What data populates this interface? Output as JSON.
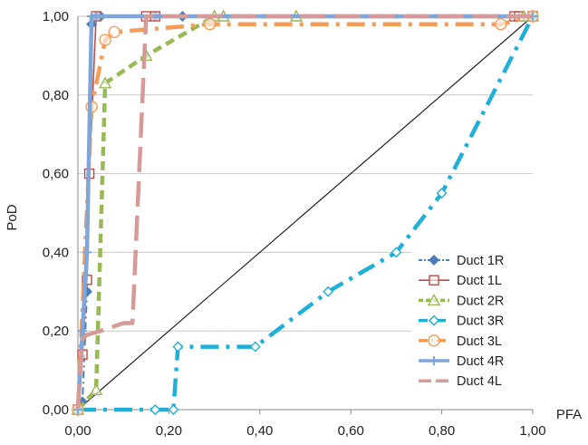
{
  "chart_data": {
    "type": "line",
    "xlabel": "PFA",
    "ylabel": "PoD",
    "xlim": [
      0,
      1
    ],
    "ylim": [
      0,
      1
    ],
    "x_ticks": [
      "0,00",
      "0,20",
      "0,40",
      "0,60",
      "0,80",
      "1,00"
    ],
    "y_ticks": [
      "0,00",
      "0,20",
      "0,40",
      "0,60",
      "0,80",
      "1,00"
    ],
    "grid": "horizontal",
    "legend_position": "bottom-right",
    "reference_line": {
      "from": [
        0,
        0
      ],
      "to": [
        1,
        1
      ],
      "color": "#222222"
    },
    "series": [
      {
        "name": "Duct 1R",
        "color": "#4a7ebb",
        "dash": "8,4,2,4",
        "marker": "diamond-filled",
        "width": 2,
        "points": [
          [
            0,
            0
          ],
          [
            0.01,
            0.02
          ],
          [
            0.02,
            0.3
          ],
          [
            0.03,
            0.98
          ],
          [
            0.04,
            1.0
          ],
          [
            0.05,
            1.0
          ],
          [
            0.17,
            1.0
          ],
          [
            0.23,
            1.0
          ],
          [
            1.0,
            1.0
          ]
        ]
      },
      {
        "name": "Duct 1L",
        "color": "#be4b48",
        "dash": "",
        "marker": "square",
        "width": 1.6,
        "points": [
          [
            0,
            0
          ],
          [
            0.01,
            0.14
          ],
          [
            0.02,
            0.33
          ],
          [
            0.025,
            0.6
          ],
          [
            0.04,
            1.0
          ],
          [
            0.15,
            1.0
          ],
          [
            0.17,
            1.0
          ],
          [
            0.96,
            1.0
          ],
          [
            0.97,
            1.0
          ],
          [
            1.0,
            1.0
          ]
        ]
      },
      {
        "name": "Duct 2R",
        "color": "#98b954",
        "dash": "10,6",
        "marker": "triangle",
        "width": 4.5,
        "points": [
          [
            0,
            0
          ],
          [
            0.04,
            0.05
          ],
          [
            0.06,
            0.83
          ],
          [
            0.15,
            0.9
          ],
          [
            0.3,
            1.0
          ],
          [
            0.32,
            1.0
          ],
          [
            0.48,
            1.0
          ],
          [
            0.98,
            1.0
          ],
          [
            1.0,
            1.0
          ]
        ]
      },
      {
        "name": "Duct 3R",
        "color": "#1fb0d8",
        "dash": "20,8,4,8",
        "marker": "diamond",
        "width": 4.5,
        "points": [
          [
            0,
            0
          ],
          [
            0.17,
            0
          ],
          [
            0.21,
            0
          ],
          [
            0.22,
            0.16
          ],
          [
            0.39,
            0.16
          ],
          [
            0.55,
            0.3
          ],
          [
            0.7,
            0.4
          ],
          [
            0.8,
            0.55
          ],
          [
            1.0,
            1.0
          ]
        ]
      },
      {
        "name": "Duct 3L",
        "color": "#f59d56",
        "dash": "20,8,4,8",
        "marker": "circle",
        "width": 4.5,
        "points": [
          [
            0,
            0
          ],
          [
            0.03,
            0.77
          ],
          [
            0.06,
            0.94
          ],
          [
            0.08,
            0.96
          ],
          [
            0.29,
            0.98
          ],
          [
            0.93,
            0.98
          ],
          [
            1.0,
            1.0
          ]
        ]
      },
      {
        "name": "Duct 4R",
        "color": "#7ea6d8",
        "dash": "",
        "marker": "plus",
        "width": 4.5,
        "points": [
          [
            0,
            0
          ],
          [
            0.01,
            0.2
          ],
          [
            0.02,
            0.4
          ],
          [
            0.03,
            1.0
          ],
          [
            0.04,
            1.0
          ],
          [
            1.0,
            1.0
          ]
        ]
      },
      {
        "name": "Duct 4L",
        "color": "#d69a98",
        "dash": "28,10",
        "marker": "none",
        "width": 4.5,
        "points": [
          [
            0,
            0
          ],
          [
            0.01,
            0.18
          ],
          [
            0.02,
            0.19
          ],
          [
            0.05,
            0.2
          ],
          [
            0.1,
            0.22
          ],
          [
            0.12,
            0.22
          ],
          [
            0.15,
            1.0
          ],
          [
            0.17,
            1.0
          ],
          [
            0.23,
            1.0
          ],
          [
            1.0,
            1.0
          ]
        ]
      }
    ]
  }
}
